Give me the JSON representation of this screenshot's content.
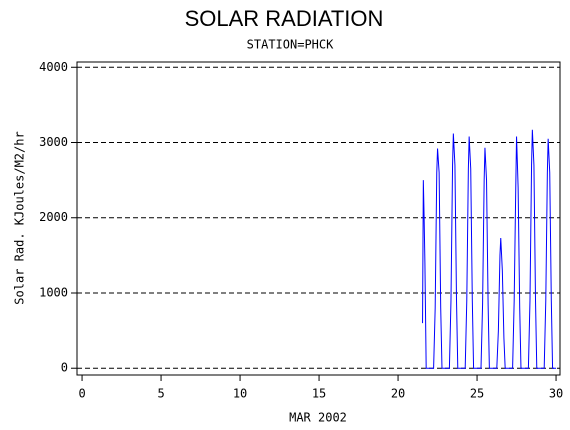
{
  "chart_data": {
    "type": "line",
    "title": "SOLAR RADIATION",
    "subtitle": "STATION=PHCK",
    "ylabel": "Solar Rad. KJoules/M2/hr",
    "xlabel": "MAR 2002",
    "color": "#0000ff",
    "grid": true,
    "xlim": [
      -0.32,
      30.25
    ],
    "ylim": [
      -90,
      4070
    ],
    "xticks": [
      0,
      5,
      10,
      15,
      20,
      25,
      30
    ],
    "yticks": [
      0,
      1000,
      2000,
      3000,
      4000
    ],
    "x": [
      21.55,
      21.6,
      21.65,
      21.7,
      21.78,
      22.25,
      22.35,
      22.45,
      22.5,
      22.6,
      22.7,
      22.78,
      23.25,
      23.35,
      23.45,
      23.5,
      23.6,
      23.7,
      23.78,
      24.25,
      24.35,
      24.45,
      24.5,
      24.6,
      24.7,
      24.78,
      25.25,
      25.35,
      25.45,
      25.5,
      25.6,
      25.7,
      25.78,
      26.25,
      26.35,
      26.45,
      26.5,
      26.6,
      26.7,
      26.78,
      27.25,
      27.35,
      27.45,
      27.5,
      27.6,
      27.7,
      27.78,
      28.25,
      28.35,
      28.45,
      28.5,
      28.6,
      28.7,
      28.78,
      29.25,
      29.35,
      29.45,
      29.5,
      29.6,
      29.7,
      29.78,
      30.0
    ],
    "values": [
      600,
      2500,
      2000,
      1400,
      0,
      0,
      800,
      2600,
      2920,
      2600,
      800,
      0,
      0,
      900,
      2700,
      3120,
      2700,
      900,
      0,
      0,
      900,
      2650,
      3080,
      2650,
      900,
      0,
      0,
      850,
      2500,
      2930,
      2500,
      850,
      0,
      0,
      500,
      1500,
      1730,
      1300,
      400,
      0,
      0,
      900,
      2400,
      3080,
      2400,
      800,
      0,
      0,
      900,
      2700,
      3170,
      2700,
      900,
      0,
      0,
      900,
      2600,
      3050,
      2600,
      900,
      0,
      0
    ]
  }
}
